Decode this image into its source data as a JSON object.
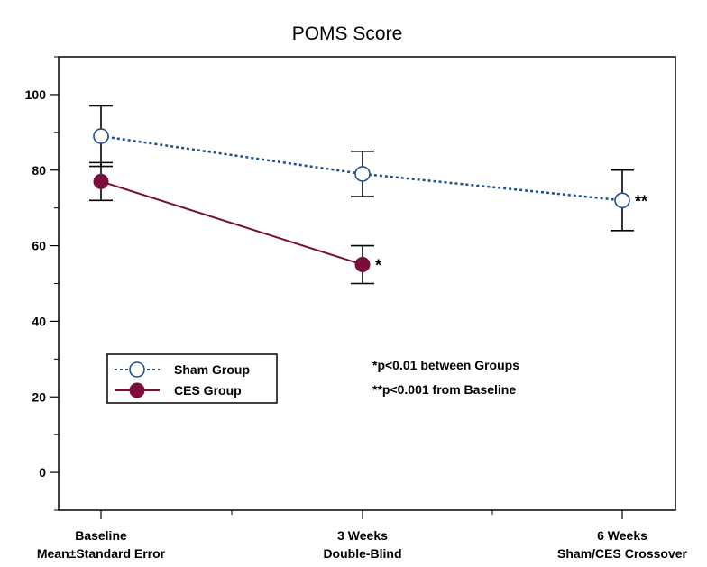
{
  "chart_data": {
    "type": "line",
    "title": "POMS Score",
    "xlabel": "",
    "ylabel": "",
    "ylim": [
      -10,
      110
    ],
    "yticks": [
      0,
      20,
      40,
      60,
      80,
      100
    ],
    "categories": [
      [
        "Baseline",
        "Mean±Standard Error"
      ],
      [
        "3 Weeks",
        "Double-Blind"
      ],
      [
        "6 Weeks",
        "Sham/CES Crossover"
      ]
    ],
    "series": [
      {
        "name": "Sham Group",
        "color": "#1f4e8c",
        "marker": "open-circle",
        "line_style": "dotted",
        "points": [
          {
            "x": 0,
            "y": 89,
            "err_low": 81,
            "err_high": 97
          },
          {
            "x": 1,
            "y": 79,
            "err_low": 73,
            "err_high": 85
          },
          {
            "x": 2,
            "y": 72,
            "err_low": 64,
            "err_high": 80
          }
        ]
      },
      {
        "name": "CES Group",
        "color": "#7a0e3a",
        "marker": "filled-circle",
        "line_style": "solid",
        "points": [
          {
            "x": 0,
            "y": 77,
            "err_low": 72,
            "err_high": 82
          },
          {
            "x": 1,
            "y": 55,
            "err_low": 50,
            "err_high": 60
          }
        ]
      }
    ],
    "annotations": [
      {
        "text": "*",
        "category": 1,
        "y": 55
      },
      {
        "text": "**",
        "category": 2,
        "y": 72
      }
    ],
    "notes": [
      "*p<0.01 between Groups",
      "**p<0.001 from Baseline"
    ],
    "legend_position": "lower-left"
  }
}
